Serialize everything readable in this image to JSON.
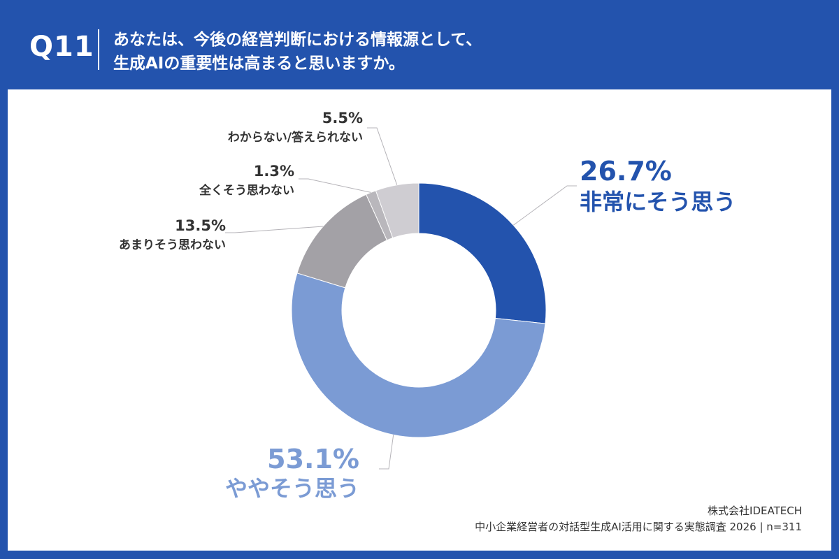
{
  "header": {
    "question_number": "Q11",
    "question_line1": "あなたは、今後の経営判断における情報源として、",
    "question_line2": "生成AIの重要性は高まると思いますか。"
  },
  "chart_data": {
    "type": "pie",
    "donut": true,
    "slices": [
      {
        "label": "非常にそう思う",
        "value": 26.7,
        "value_text": "26.7%",
        "color": "#2353ad"
      },
      {
        "label": "ややそう思う",
        "value": 53.1,
        "value_text": "53.1%",
        "color": "#7b9bd4"
      },
      {
        "label": "あまりそう思わない",
        "value": 13.5,
        "value_text": "13.5%",
        "color": "#a3a1a6"
      },
      {
        "label": "全くそう思わない",
        "value": 1.3,
        "value_text": "1.3%",
        "color": "#b9b7bc"
      },
      {
        "label": "わからない/答えられない",
        "value": 5.5,
        "value_text": "5.5%",
        "color": "#cfcdd2"
      }
    ]
  },
  "footer": {
    "company": "株式会社IDEATECH",
    "survey": "中小企業経営者の対話型生成AI活用に関する実態調査 2026 | n=311"
  }
}
